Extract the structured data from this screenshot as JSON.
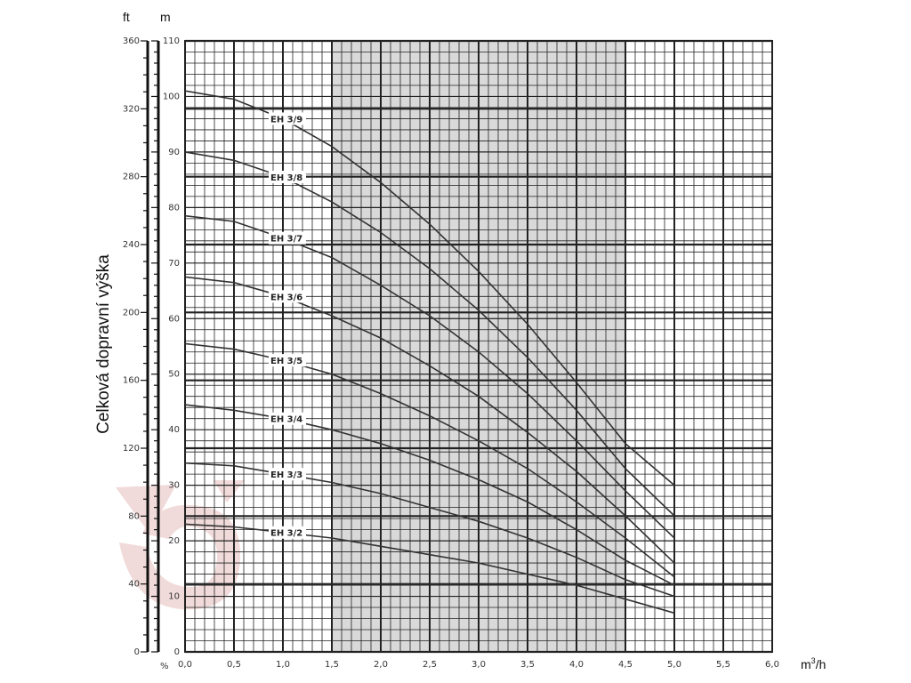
{
  "chart_data": {
    "type": "line",
    "ylabel": "Celková dopravní výška",
    "xlabel": "m³/h",
    "xlabel_main": "m",
    "xlabel_sup": "3",
    "xlabel_tail": "/h",
    "y_unit_m": "m",
    "y_unit_ft": "ft",
    "efficiency_unit": "%",
    "xlim": [
      0,
      6
    ],
    "ylim": [
      0,
      110
    ],
    "ft_lim": [
      0,
      360
    ],
    "x_ticks": [
      "0,0",
      "0,5",
      "1,0",
      "1,5",
      "2,0",
      "2,5",
      "3,0",
      "3,5",
      "4,0",
      "4,5",
      "5,0",
      "5,5",
      "6,0"
    ],
    "y_ticks_m": [
      "0",
      "10",
      "20",
      "30",
      "40",
      "50",
      "60",
      "70",
      "80",
      "90",
      "100",
      "110"
    ],
    "y_ticks_ft": [
      "0",
      "40",
      "80",
      "120",
      "160",
      "200",
      "240",
      "280",
      "320",
      "360"
    ],
    "shaded_range": [
      1.5,
      4.5
    ],
    "grid": true,
    "series": [
      {
        "name": "EH 3/9",
        "x": [
          0,
          0.5,
          1.0,
          1.5,
          2.0,
          2.5,
          3.0,
          3.5,
          4.0,
          4.5,
          5.0
        ],
        "y": [
          101,
          99.5,
          96,
          91,
          84.5,
          77,
          68.5,
          59,
          48.5,
          37.5,
          30
        ]
      },
      {
        "name": "EH 3/8",
        "x": [
          0,
          0.5,
          1.0,
          1.5,
          2.0,
          2.5,
          3.0,
          3.5,
          4.0,
          4.5,
          5.0
        ],
        "y": [
          90,
          88.5,
          85.5,
          81,
          75.5,
          69,
          61.5,
          53,
          43.5,
          33,
          24.5
        ]
      },
      {
        "name": "EH 3/7",
        "x": [
          0,
          0.5,
          1.0,
          1.5,
          2.0,
          2.5,
          3.0,
          3.5,
          4.0,
          4.5,
          5.0
        ],
        "y": [
          78.5,
          77.5,
          74.5,
          71,
          66,
          60.5,
          54,
          46.5,
          38,
          29,
          20.5
        ]
      },
      {
        "name": "EH 3/6",
        "x": [
          0,
          0.5,
          1.0,
          1.5,
          2.0,
          2.5,
          3.0,
          3.5,
          4.0,
          4.5,
          5.0
        ],
        "y": [
          67.5,
          66.5,
          64,
          60.5,
          56.5,
          51.5,
          46,
          39.5,
          32.5,
          24.5,
          16
        ]
      },
      {
        "name": "EH 3/5",
        "x": [
          0,
          0.5,
          1.0,
          1.5,
          2.0,
          2.5,
          3.0,
          3.5,
          4.0,
          4.5,
          5.0
        ],
        "y": [
          55.5,
          54.5,
          52.5,
          50,
          46.5,
          42.5,
          38,
          33,
          27,
          20.5,
          13.5
        ]
      },
      {
        "name": "EH 3/4",
        "x": [
          0,
          0.5,
          1.0,
          1.5,
          2.0,
          2.5,
          3.0,
          3.5,
          4.0,
          4.5,
          5.0
        ],
        "y": [
          44.5,
          43.5,
          42,
          40,
          37.5,
          34.5,
          31,
          27,
          22,
          16.5,
          12
        ]
      },
      {
        "name": "EH 3/3",
        "x": [
          0,
          0.5,
          1.0,
          1.5,
          2.0,
          2.5,
          3.0,
          3.5,
          4.0,
          4.5,
          5.0
        ],
        "y": [
          34,
          33.5,
          32,
          30.5,
          28.5,
          26,
          23.5,
          20.5,
          17,
          13,
          10
        ]
      },
      {
        "name": "EH 3/2",
        "x": [
          0,
          0.5,
          1.0,
          1.5,
          2.0,
          2.5,
          3.0,
          3.5,
          4.0,
          4.5,
          5.0
        ],
        "y": [
          23,
          22.5,
          21.5,
          20.5,
          19,
          17.5,
          16,
          14,
          12,
          9.5,
          7
        ]
      }
    ],
    "label_positions_x": [
      1.0,
      1.0,
      1.0,
      1.0,
      1.0,
      1.0,
      1.0,
      1.0
    ]
  },
  "colors": {
    "curve": "#333333",
    "grid": "#222222",
    "shade": "#d9d9d9",
    "watermark": "#e6bcbc"
  }
}
